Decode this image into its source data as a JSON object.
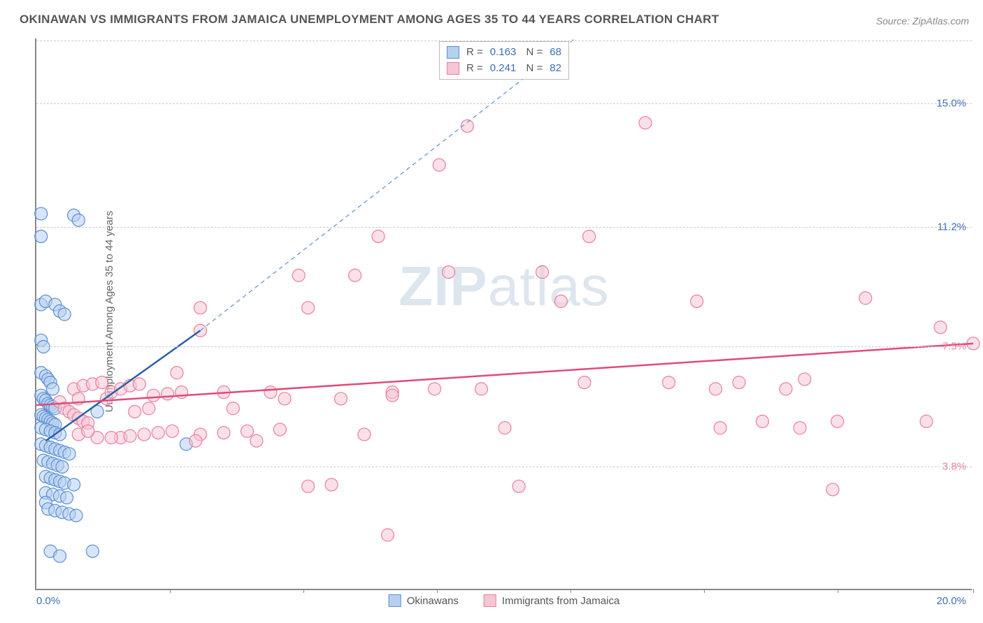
{
  "title": "OKINAWAN VS IMMIGRANTS FROM JAMAICA UNEMPLOYMENT AMONG AGES 35 TO 44 YEARS CORRELATION CHART",
  "source": "Source: ZipAtlas.com",
  "ylabel": "Unemployment Among Ages 35 to 44 years",
  "watermark_a": "ZIP",
  "watermark_b": "atlas",
  "chart": {
    "type": "scatter",
    "xlim": [
      0,
      20
    ],
    "ylim": [
      0,
      17
    ],
    "x_start_label": "0.0%",
    "x_end_label": "20.0%",
    "x_ticks": [
      2.85,
      5.7,
      8.55,
      11.4,
      14.25,
      17.1,
      20
    ],
    "y_gridlines": [
      {
        "value": 3.8,
        "label": "3.8%",
        "color": "#e97fa0"
      },
      {
        "value": 7.5,
        "label": "7.5%",
        "color": "#e97fa0"
      },
      {
        "value": 11.2,
        "label": "11.2%",
        "color": "#3b6fb6"
      },
      {
        "value": 15.0,
        "label": "15.0%",
        "color": "#3b6fb6"
      }
    ],
    "background_color": "#ffffff",
    "grid_color": "#cccccc",
    "axis_color": "#888888",
    "marker_radius": 9,
    "marker_stroke_width": 1.2,
    "series": [
      {
        "name": "Okinawans",
        "fill": "#b6d0ee",
        "stroke": "#5a8fd6",
        "fill_opacity": 0.55,
        "R": "0.163",
        "N": "68",
        "trend_solid": {
          "x1": 0.2,
          "y1": 4.6,
          "x2": 3.5,
          "y2": 8.0,
          "color": "#2d5fa8",
          "width": 2.5
        },
        "trend_dashed": {
          "x1": 3.5,
          "y1": 8.0,
          "x2": 11.5,
          "y2": 17.0,
          "color": "#5a8fd6",
          "width": 1.2
        },
        "points": [
          [
            0.1,
            11.6
          ],
          [
            0.1,
            10.9
          ],
          [
            0.8,
            11.55
          ],
          [
            0.9,
            11.4
          ],
          [
            0.1,
            8.8
          ],
          [
            0.2,
            8.9
          ],
          [
            0.4,
            8.8
          ],
          [
            0.5,
            8.6
          ],
          [
            0.6,
            8.5
          ],
          [
            0.1,
            7.7
          ],
          [
            0.15,
            7.5
          ],
          [
            0.1,
            6.7
          ],
          [
            0.2,
            6.6
          ],
          [
            0.25,
            6.5
          ],
          [
            0.3,
            6.4
          ],
          [
            0.35,
            6.2
          ],
          [
            0.1,
            6.0
          ],
          [
            0.15,
            5.9
          ],
          [
            0.2,
            5.85
          ],
          [
            0.25,
            5.75
          ],
          [
            0.3,
            5.7
          ],
          [
            0.35,
            5.65
          ],
          [
            0.4,
            5.6
          ],
          [
            0.1,
            5.4
          ],
          [
            0.15,
            5.35
          ],
          [
            0.2,
            5.3
          ],
          [
            0.25,
            5.25
          ],
          [
            0.3,
            5.2
          ],
          [
            0.35,
            5.15
          ],
          [
            0.4,
            5.1
          ],
          [
            0.1,
            5.0
          ],
          [
            0.2,
            4.95
          ],
          [
            0.3,
            4.9
          ],
          [
            0.4,
            4.85
          ],
          [
            0.5,
            4.8
          ],
          [
            0.1,
            4.5
          ],
          [
            0.2,
            4.45
          ],
          [
            0.3,
            4.4
          ],
          [
            0.4,
            4.35
          ],
          [
            0.5,
            4.3
          ],
          [
            0.6,
            4.25
          ],
          [
            0.7,
            4.2
          ],
          [
            0.15,
            4.0
          ],
          [
            0.25,
            3.95
          ],
          [
            0.35,
            3.9
          ],
          [
            0.45,
            3.85
          ],
          [
            0.55,
            3.8
          ],
          [
            0.2,
            3.5
          ],
          [
            0.3,
            3.45
          ],
          [
            0.4,
            3.4
          ],
          [
            0.5,
            3.35
          ],
          [
            0.6,
            3.3
          ],
          [
            0.8,
            3.25
          ],
          [
            0.2,
            3.0
          ],
          [
            0.35,
            2.95
          ],
          [
            0.5,
            2.9
          ],
          [
            0.65,
            2.85
          ],
          [
            0.2,
            2.7
          ],
          [
            0.25,
            2.5
          ],
          [
            0.4,
            2.45
          ],
          [
            0.55,
            2.4
          ],
          [
            0.7,
            2.35
          ],
          [
            0.85,
            2.3
          ],
          [
            0.3,
            1.2
          ],
          [
            0.5,
            1.05
          ],
          [
            1.2,
            1.2
          ],
          [
            3.2,
            4.5
          ],
          [
            1.3,
            5.5
          ]
        ]
      },
      {
        "name": "Immigrants from Jamaica",
        "fill": "#f5c6d4",
        "stroke": "#e97fa0",
        "fill_opacity": 0.55,
        "R": "0.241",
        "N": "82",
        "trend_solid": {
          "x1": 0.0,
          "y1": 5.7,
          "x2": 20.0,
          "y2": 7.6,
          "color": "#e24a7a",
          "width": 2.5
        },
        "points": [
          [
            0.5,
            5.8
          ],
          [
            0.6,
            5.6
          ],
          [
            0.7,
            5.5
          ],
          [
            0.8,
            5.4
          ],
          [
            0.9,
            5.3
          ],
          [
            1.0,
            5.2
          ],
          [
            1.1,
            5.15
          ],
          [
            0.8,
            6.2
          ],
          [
            1.0,
            6.3
          ],
          [
            1.2,
            6.35
          ],
          [
            1.4,
            6.4
          ],
          [
            0.9,
            5.9
          ],
          [
            1.5,
            5.9
          ],
          [
            1.6,
            6.1
          ],
          [
            1.8,
            6.2
          ],
          [
            2.0,
            6.3
          ],
          [
            2.2,
            6.35
          ],
          [
            1.8,
            4.7
          ],
          [
            2.0,
            4.75
          ],
          [
            2.3,
            4.8
          ],
          [
            2.6,
            4.85
          ],
          [
            2.9,
            4.9
          ],
          [
            2.5,
            6.0
          ],
          [
            2.8,
            6.05
          ],
          [
            3.1,
            6.1
          ],
          [
            3.5,
            8.7
          ],
          [
            3.5,
            8.0
          ],
          [
            5.8,
            8.7
          ],
          [
            5.6,
            9.7
          ],
          [
            4.0,
            6.1
          ],
          [
            4.2,
            5.6
          ],
          [
            5.0,
            6.1
          ],
          [
            5.3,
            5.9
          ],
          [
            3.5,
            4.8
          ],
          [
            4.0,
            4.85
          ],
          [
            4.5,
            4.9
          ],
          [
            5.2,
            4.95
          ],
          [
            5.8,
            3.2
          ],
          [
            6.3,
            3.25
          ],
          [
            7.5,
            1.7
          ],
          [
            7.6,
            6.1
          ],
          [
            7.6,
            6.0
          ],
          [
            7.3,
            10.9
          ],
          [
            8.5,
            6.2
          ],
          [
            8.6,
            13.1
          ],
          [
            8.8,
            9.8
          ],
          [
            9.2,
            14.3
          ],
          [
            9.5,
            6.2
          ],
          [
            10.0,
            5.0
          ],
          [
            10.3,
            3.2
          ],
          [
            10.8,
            9.8
          ],
          [
            11.2,
            8.9
          ],
          [
            11.8,
            10.9
          ],
          [
            11.7,
            6.4
          ],
          [
            13.0,
            14.4
          ],
          [
            13.5,
            6.4
          ],
          [
            14.1,
            8.9
          ],
          [
            14.5,
            6.2
          ],
          [
            14.6,
            5.0
          ],
          [
            15.0,
            6.4
          ],
          [
            15.5,
            5.2
          ],
          [
            16.0,
            6.2
          ],
          [
            16.3,
            5.0
          ],
          [
            16.4,
            6.5
          ],
          [
            17.0,
            3.1
          ],
          [
            17.1,
            5.2
          ],
          [
            17.7,
            9.0
          ],
          [
            19.0,
            5.2
          ],
          [
            19.3,
            8.1
          ],
          [
            20.0,
            7.6
          ],
          [
            3.0,
            6.7
          ],
          [
            3.4,
            4.6
          ],
          [
            4.7,
            4.6
          ],
          [
            2.1,
            5.5
          ],
          [
            2.4,
            5.6
          ],
          [
            6.5,
            5.9
          ],
          [
            6.8,
            9.7
          ],
          [
            7.0,
            4.8
          ],
          [
            1.3,
            4.7
          ],
          [
            1.6,
            4.7
          ],
          [
            0.9,
            4.8
          ],
          [
            1.1,
            4.9
          ]
        ]
      }
    ]
  },
  "legend": {
    "items": [
      {
        "label": "Okinawans",
        "fill": "#b6d0ee",
        "stroke": "#5a8fd6"
      },
      {
        "label": "Immigrants from Jamaica",
        "fill": "#f5c6d4",
        "stroke": "#e97fa0"
      }
    ]
  }
}
